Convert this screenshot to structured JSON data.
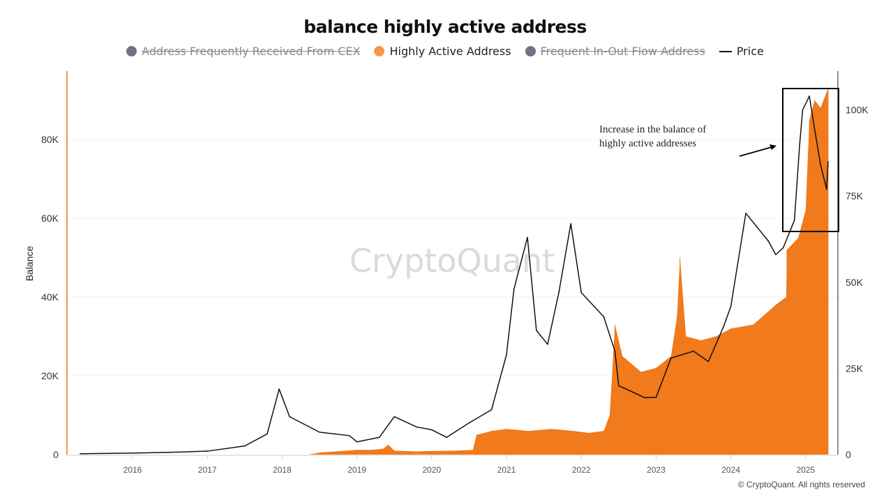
{
  "chart_data": {
    "type": "bar+line",
    "title": "balance highly active address",
    "ylabel": "Balance",
    "ylim": [
      0,
      97000
    ],
    "y2lim": [
      0,
      107000
    ],
    "yticks": [
      "0",
      "20K",
      "40K",
      "60K",
      "80K"
    ],
    "y2ticks": [
      "0",
      "25K",
      "50K",
      "75K",
      "100K"
    ],
    "xticks": [
      "2016",
      "2017",
      "2018",
      "2019",
      "2020",
      "2021",
      "2022",
      "2023",
      "2024",
      "2025"
    ],
    "grid": true,
    "legend_position": "top",
    "legend": [
      {
        "name": "Address Frequently Received From CEX",
        "color": "#71717f",
        "hidden": true
      },
      {
        "name": "Highly Active Address",
        "color": "#f5964f",
        "hidden": false
      },
      {
        "name": "Frequent In-Out Flow Address",
        "color": "#71717f",
        "hidden": true
      },
      {
        "name": "Price",
        "color": "#111111",
        "hidden": false
      }
    ],
    "series": [
      {
        "name": "Highly Active Address",
        "axis": "left",
        "color": "#f07a1c",
        "x": [
          2018.35,
          2018.5,
          2018.8,
          2019.0,
          2019.2,
          2019.35,
          2019.42,
          2019.5,
          2019.8,
          2020.0,
          2020.3,
          2020.55,
          2020.6,
          2020.8,
          2021.0,
          2021.3,
          2021.6,
          2021.9,
          2022.1,
          2022.3,
          2022.38,
          2022.45,
          2022.55,
          2022.8,
          2023.0,
          2023.2,
          2023.28,
          2023.32,
          2023.4,
          2023.6,
          2023.8,
          2024.0,
          2024.3,
          2024.6,
          2024.74,
          2024.75,
          2024.9,
          2025.0,
          2025.05,
          2025.12,
          2025.2,
          2025.28,
          2025.3
        ],
        "values": [
          0,
          500,
          900,
          1200,
          1200,
          1500,
          2500,
          1000,
          800,
          900,
          1000,
          1200,
          5000,
          6000,
          6500,
          6000,
          6500,
          6000,
          5500,
          6000,
          10000,
          33000,
          25000,
          21000,
          22000,
          25000,
          35000,
          50000,
          30000,
          29000,
          30000,
          32000,
          33000,
          38000,
          40000,
          52000,
          55000,
          62000,
          85000,
          90000,
          88000,
          92000,
          93000
        ]
      },
      {
        "name": "Price",
        "axis": "right",
        "color": "#111111",
        "x": [
          2015.3,
          2016.0,
          2016.5,
          2017.0,
          2017.5,
          2017.8,
          2017.96,
          2018.1,
          2018.5,
          2018.9,
          2019.0,
          2019.3,
          2019.5,
          2019.8,
          2020.0,
          2020.2,
          2020.5,
          2020.8,
          2021.0,
          2021.1,
          2021.28,
          2021.4,
          2021.55,
          2021.7,
          2021.86,
          2022.0,
          2022.3,
          2022.45,
          2022.5,
          2022.85,
          2023.0,
          2023.2,
          2023.5,
          2023.7,
          2023.9,
          2024.0,
          2024.2,
          2024.5,
          2024.6,
          2024.7,
          2024.85,
          2024.92,
          2024.96,
          2025.05,
          2025.1,
          2025.2,
          2025.28,
          2025.3
        ],
        "values": [
          240,
          430,
          650,
          1000,
          2500,
          6000,
          19000,
          11000,
          6500,
          5500,
          3700,
          5000,
          11000,
          8000,
          7200,
          5000,
          9200,
          13000,
          29000,
          48000,
          63000,
          36000,
          32000,
          47000,
          67000,
          47000,
          40000,
          30000,
          20000,
          16500,
          16600,
          28000,
          30000,
          27000,
          37000,
          43000,
          70000,
          62000,
          58000,
          60000,
          68000,
          90000,
          100000,
          104000,
          97000,
          84000,
          77000,
          85000
        ]
      }
    ],
    "annotations": [
      {
        "text_lines": [
          "Increase in the balance of",
          "highly active addresses"
        ]
      }
    ]
  },
  "watermark": "CryptoQuant",
  "footer": "© CryptoQuant. All rights reserved"
}
